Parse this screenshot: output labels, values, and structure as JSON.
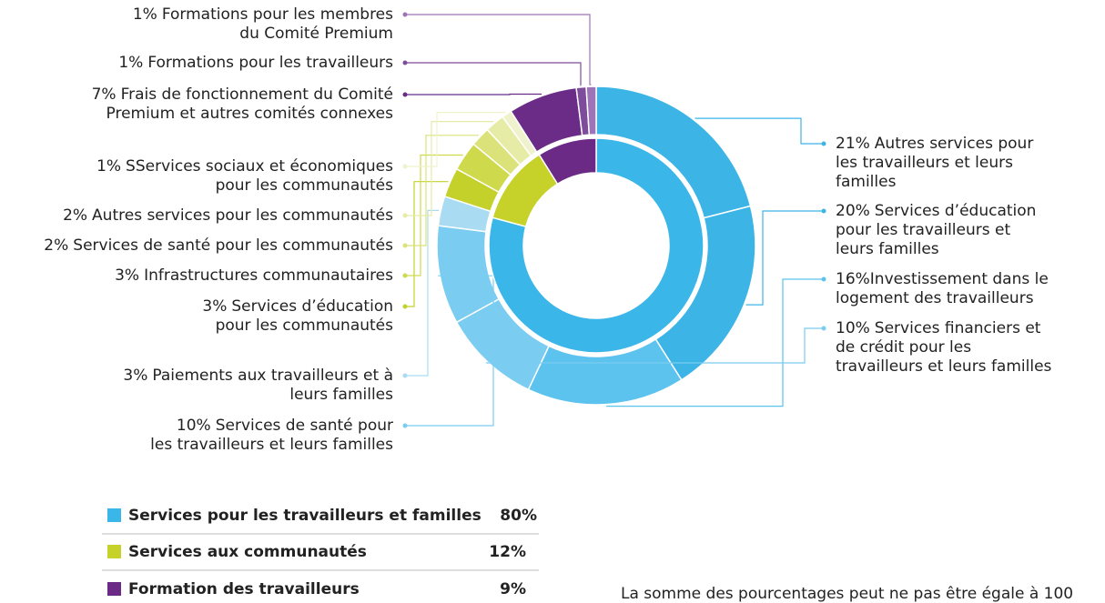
{
  "chart_data": {
    "type": "donut",
    "outer": {
      "labels": [
        [
          "Autres services pour",
          "les travailleurs et leurs",
          "familles"
        ],
        [
          "Services d’éducation",
          "pour les travailleurs et",
          "leurs familles"
        ],
        [
          "Investissement dans le",
          "logement des travailleurs"
        ],
        [
          "Services financiers et",
          "de crédit pour les",
          "travailleurs et leurs familles"
        ],
        [
          "Services de santé pour",
          "les travailleurs et leurs familles"
        ],
        [
          "Paiements aux travailleurs et à",
          "leurs familles"
        ],
        [
          "Services d’éducation",
          "pour les communautés"
        ],
        [
          "Infrastructures communautaires"
        ],
        [
          "Services de santé pour les communautés"
        ],
        [
          "Autres services pour les communautés"
        ],
        [
          "SServices sociaux et économiques",
          "pour les communautés"
        ],
        [
          "Frais de fonctionnement du Comité",
          "Premium et autres comités connexes"
        ],
        [
          "Formations pour les travailleurs"
        ],
        [
          "Formations pour les membres",
          "du Comité Premium"
        ]
      ],
      "values": [
        21,
        20,
        16,
        10,
        10,
        3,
        3,
        3,
        2,
        2,
        1,
        7,
        1,
        1
      ],
      "value_labels": [
        "21%",
        "20%",
        "16%",
        "10%",
        "10%",
        "3%",
        "3%",
        "3%",
        "2%",
        "2%",
        "1%",
        "7%",
        "1%",
        "1%"
      ],
      "colors": [
        "#3cb5e6",
        "#3cb5e6",
        "#5cc2ee",
        "#7accf1",
        "#7accf1",
        "#a9dcf3",
        "#c4d12a",
        "#cfd94c",
        "#dbe27a",
        "#e6eba6",
        "#eff2cc",
        "#6a2c87",
        "#7d4c9b",
        "#9d74b7"
      ]
    },
    "inner": {
      "categories": [
        "Services pour les travailleurs et familles",
        "Services aux communautés",
        "Formation des travailleurs"
      ],
      "values": [
        80,
        12,
        9
      ],
      "value_labels": [
        "80%",
        "12%",
        "9%"
      ],
      "colors": [
        "#3bb6e8",
        "#c6d22a",
        "#6b2a86"
      ]
    },
    "note": "La somme des pourcentages peut ne pas être égale à 100"
  }
}
